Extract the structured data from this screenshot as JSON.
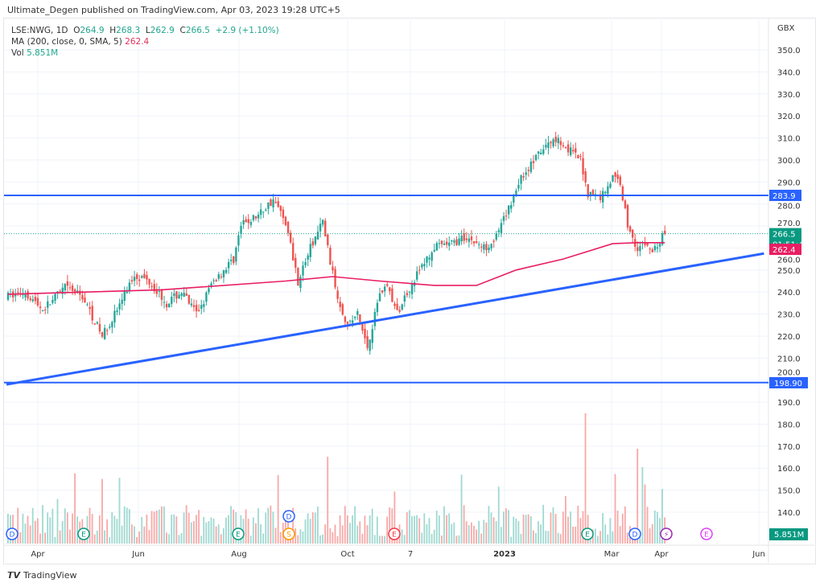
{
  "header": {
    "published": "Ultimate_Degen published on TradingView.com, Apr 03, 2023 19:28 UTC+5"
  },
  "legend": {
    "symbol": "LSE:NWG, 1D",
    "o_label": "O",
    "o": "264.9",
    "h_label": "H",
    "h": "268.3",
    "l_label": "L",
    "l": "262.9",
    "c_label": "C",
    "c": "266.5",
    "change": "+2.9 (+1.10%)",
    "ma_label": "MA (200, close, 0, SMA, 5)",
    "ma_value": "262.4",
    "vol_label": "Vol",
    "vol_value": "5.851M"
  },
  "footer": {
    "brand": "TradingView"
  },
  "colors": {
    "up": "#26a69a",
    "down": "#ef5350",
    "ma": "#e91e63",
    "line": "#2962ff"
  },
  "chart_data": {
    "type": "candlestick",
    "currency": "GBX",
    "ylim": [
      135,
      355
    ],
    "y_ticks": [
      350,
      340,
      330,
      320,
      310,
      300,
      290,
      280,
      270,
      260,
      250,
      240,
      230,
      220,
      210,
      200,
      190,
      180,
      170,
      160,
      150,
      140
    ],
    "x_ticks": [
      "Apr",
      "Jun",
      "Aug",
      "Oct",
      "7",
      "2023",
      "Mar",
      "Apr",
      "Jun"
    ],
    "close_path": [
      [
        0,
        238
      ],
      [
        7,
        240
      ],
      [
        14,
        232
      ],
      [
        23,
        242
      ],
      [
        30,
        238
      ],
      [
        38,
        220
      ],
      [
        44,
        232
      ],
      [
        51,
        248
      ],
      [
        57,
        245
      ],
      [
        64,
        235
      ],
      [
        70,
        240
      ],
      [
        76,
        230
      ],
      [
        83,
        245
      ],
      [
        91,
        255
      ],
      [
        94,
        270
      ],
      [
        101,
        275
      ],
      [
        107,
        282
      ],
      [
        112,
        272
      ],
      [
        117,
        245
      ],
      [
        122,
        260
      ],
      [
        127,
        272
      ],
      [
        131,
        248
      ],
      [
        133,
        238
      ],
      [
        137,
        225
      ],
      [
        141,
        230
      ],
      [
        145,
        215
      ],
      [
        150,
        240
      ],
      [
        153,
        243
      ],
      [
        157,
        230
      ],
      [
        161,
        240
      ],
      [
        166,
        250
      ],
      [
        172,
        260
      ],
      [
        179,
        262
      ],
      [
        185,
        265
      ],
      [
        192,
        260
      ],
      [
        197,
        265
      ],
      [
        201,
        275
      ],
      [
        206,
        290
      ],
      [
        211,
        298
      ],
      [
        216,
        305
      ],
      [
        221,
        310
      ],
      [
        226,
        305
      ],
      [
        231,
        300
      ],
      [
        234,
        285
      ],
      [
        239,
        283
      ],
      [
        244,
        292
      ],
      [
        247,
        290
      ],
      [
        250,
        270
      ],
      [
        254,
        260
      ],
      [
        257,
        262
      ],
      [
        260,
        258
      ],
      [
        265,
        266.5
      ]
    ],
    "ma_path": [
      [
        0,
        239
      ],
      [
        62,
        241
      ],
      [
        112,
        245
      ],
      [
        131,
        247
      ],
      [
        150,
        245
      ],
      [
        172,
        243
      ],
      [
        189,
        243
      ],
      [
        205,
        250
      ],
      [
        224,
        255
      ],
      [
        244,
        262
      ],
      [
        254,
        262.4
      ],
      [
        265,
        262.4
      ]
    ],
    "horizontal_levels": [
      "283.9",
      "198.90"
    ],
    "trendline": [
      [
        0,
        198
      ],
      [
        305,
        257.5
      ]
    ],
    "last_price": "266.5",
    "countdown": "01:51:40",
    "ma_last": "262.4",
    "vol_last": "5.851M",
    "events": [
      [
        "D",
        "#2962ff"
      ],
      [
        "E",
        "#089981"
      ],
      [
        "E",
        "#089981"
      ],
      [
        "S",
        "#ff9800"
      ],
      [
        "D",
        "#2962ff"
      ],
      [
        "E",
        "#f23645"
      ],
      [
        "E",
        "#089981"
      ],
      [
        "D",
        "#2962ff"
      ],
      [
        "⚡",
        "#9c27b0"
      ],
      [
        "E",
        "#e040fb"
      ]
    ]
  }
}
